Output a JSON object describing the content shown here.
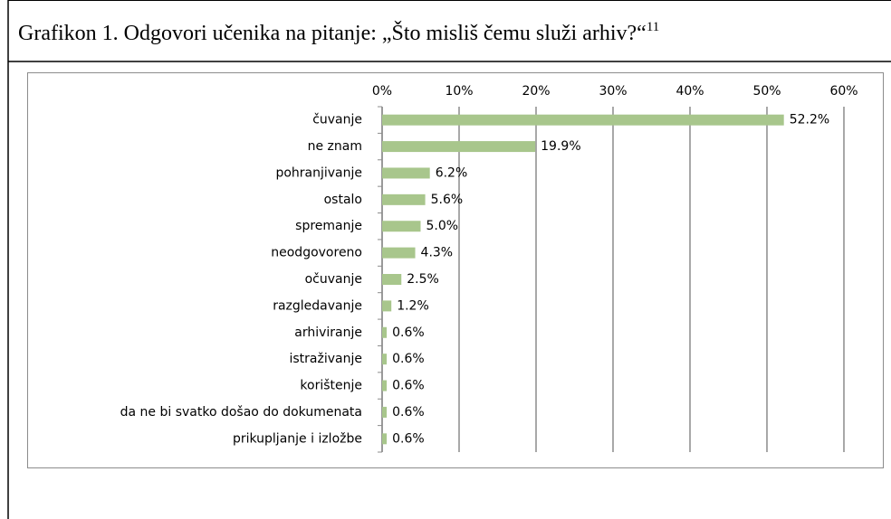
{
  "chart_data": {
    "type": "bar",
    "orientation": "horizontal",
    "title": "Grafikon 1. Odgovori učenika na pitanje: „Što misliš čemu služi arhiv?“",
    "title_footnote": "11",
    "categories": [
      "čuvanje",
      "ne znam",
      "pohranjivanje",
      "ostalo",
      "spremanje",
      "neodgovoreno",
      "očuvanje",
      "razgledavanje",
      "arhiviranje",
      "istraživanje",
      "korištenje",
      "da ne bi svatko došao do dokumenata",
      "prikupljanje i izložbe"
    ],
    "values": [
      52.2,
      19.9,
      6.2,
      5.6,
      5.0,
      4.3,
      2.5,
      1.2,
      0.6,
      0.6,
      0.6,
      0.6,
      0.6
    ],
    "value_labels": [
      "52.2%",
      "19.9%",
      "6.2%",
      "5.6%",
      "5.0%",
      "4.3%",
      "2.5%",
      "1.2%",
      "0.6%",
      "0.6%",
      "0.6%",
      "0.6%",
      "0.6%"
    ],
    "color": "#a8c68c",
    "xlim": [
      0,
      60
    ],
    "xticks": [
      {
        "value": 0,
        "label": "0%"
      },
      {
        "value": 10,
        "label": "10%"
      },
      {
        "value": 20,
        "label": "20%"
      },
      {
        "value": 30,
        "label": "30%"
      },
      {
        "value": 40,
        "label": "40%"
      },
      {
        "value": 50,
        "label": "50%"
      },
      {
        "value": 60,
        "label": "60%"
      }
    ],
    "grid": true
  }
}
